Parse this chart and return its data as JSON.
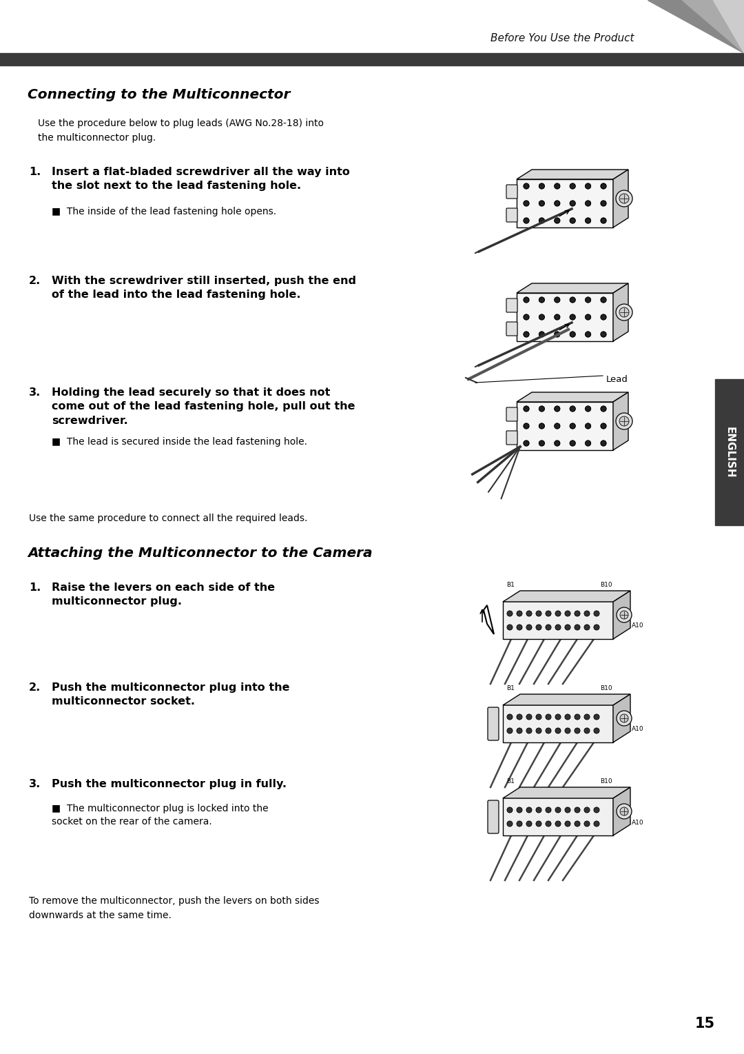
{
  "page_width": 10.8,
  "page_height": 15.29,
  "bg_color": "#ffffff",
  "header_text": "Before You Use the Product",
  "header_bar_color": "#3a3a3a",
  "english_sidebar_text": "ENGLISH",
  "english_sidebar_bg": "#3a3a3a",
  "page_number": "15",
  "section1_title": "Connecting to the Multiconnector",
  "section1_intro": "Use the procedure below to plug leads (AWG No.28-18) into\nthe multiconnector plug.",
  "s1_step1_num": "1.",
  "s1_step1_bold": "Insert a flat-bladed screwdriver all the way into\nthe slot next to the lead fastening hole.",
  "s1_step1_bullet": "The inside of the lead fastening hole opens.",
  "s1_step2_num": "2.",
  "s1_step2_bold": "With the screwdriver still inserted, push the end\nof the lead into the lead fastening hole.",
  "s1_step2_label": "Lead",
  "s1_step3_num": "3.",
  "s1_step3_bold": "Holding the lead securely so that it does not\ncome out of the lead fastening hole, pull out the\nscrewdriver.",
  "s1_step3_bullet": "The lead is secured inside the lead fastening hole.",
  "between_text": "Use the same procedure to connect all the required leads.",
  "section2_title": "Attaching the Multiconnector to the Camera",
  "s2_step1_num": "1.",
  "s2_step1_bold": "Raise the levers on each side of the\nmulticonnector plug.",
  "s2_step2_num": "2.",
  "s2_step2_bold": "Push the multiconnector plug into the\nmulticonnector socket.",
  "s2_step3_num": "3.",
  "s2_step3_bold": "Push the multiconnector plug in fully.",
  "s2_step3_bullet": "The multiconnector plug is locked into the\nsocket on the rear of the camera.",
  "footer_text": "To remove the multiconnector, push the levers on both sides\ndownwards at the same time."
}
